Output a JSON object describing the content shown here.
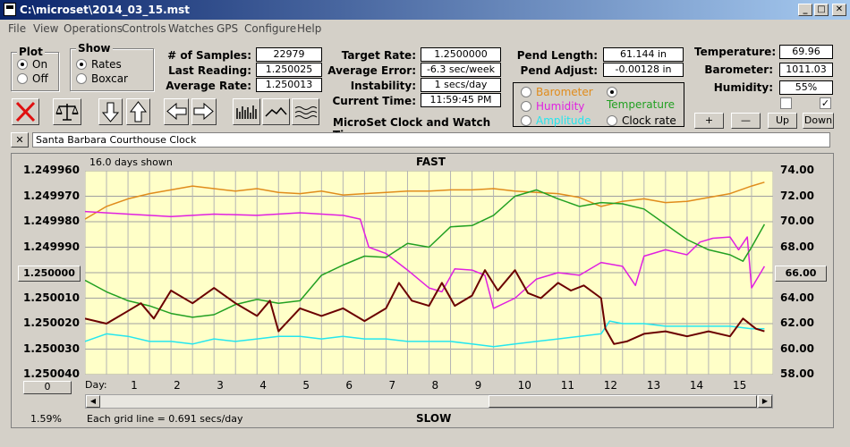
{
  "window": {
    "title": "C:\\microset\\2014_03_15.mst",
    "min": "_",
    "max": "□",
    "close": "✕"
  },
  "menu": [
    "File",
    "View",
    "Operations",
    "Controls",
    "Watches",
    "GPS",
    "Configure",
    "Help"
  ],
  "plot": {
    "title": "Plot",
    "on": "On",
    "off": "Off",
    "selected": "on"
  },
  "show": {
    "title": "Show",
    "rates": "Rates",
    "boxcar": "Boxcar",
    "selected": "rates"
  },
  "stats": {
    "samples_label": "# of Samples:",
    "samples": "22979",
    "last_label": "Last Reading:",
    "last": "1.250025",
    "avg_label": "Average Rate:",
    "avg": "1.250013"
  },
  "rates": {
    "target_label": "Target Rate:",
    "target": "1.2500000",
    "error_label": "Average Error:",
    "error": "-6.3 sec/week",
    "instab_label": "Instability:",
    "instab": "1 secs/day",
    "time_label": "Current Time:",
    "time": "11:59:45 PM",
    "app_name": "MicroSet Clock and Watch Timer"
  },
  "pend": {
    "length_label": "Pend Length:",
    "length": "61.144 in",
    "adjust_label": "Pend Adjust:",
    "adjust": "-0.00128 in"
  },
  "sensors": {
    "barometer": "Barometer",
    "temperature": "Temperature",
    "humidity": "Humidity",
    "amplitude": "Amplitude",
    "clockrate": "Clock rate",
    "selected": "temperature"
  },
  "env": {
    "temp_label": "Temperature:",
    "temp": "69.96",
    "baro_label": "Barometer:",
    "baro": "1011.03",
    "hum_label": "Humidity:",
    "hum": "55%"
  },
  "adjust_buttons": {
    "plus": "+",
    "minus": "—",
    "up": "Up",
    "down": "Down"
  },
  "clock_name": "Santa Barbara Courthouse Clock",
  "chart": {
    "days_shown": "16.0 days shown",
    "fast": "FAST",
    "slow": "SLOW",
    "grid_note": "Each grid line = 0.691 secs/day",
    "percent": "1.59%",
    "left_btn": "1.250000",
    "right_btn": "66.00",
    "zero_btn": "0",
    "day_label": "Day:"
  },
  "chart_data": {
    "type": "line",
    "x_range": [
      0,
      16
    ],
    "y_left_ticks": [
      "1.249960",
      "1.249970",
      "1.249980",
      "1.249990",
      "1.250000",
      "1.250010",
      "1.250020",
      "1.250030",
      "1.250040"
    ],
    "y_right_ticks": [
      "74.00",
      "72.00",
      "70.00",
      "68.00",
      "66.00",
      "64.00",
      "62.00",
      "60.00",
      "58.00"
    ],
    "x_ticks": [
      "1",
      "2",
      "3",
      "4",
      "5",
      "6",
      "7",
      "8",
      "9",
      "10",
      "11",
      "12",
      "13",
      "14",
      "15"
    ],
    "y_left_range": [
      1.24996,
      1.25004
    ],
    "y_right_range": [
      58,
      74
    ],
    "series": [
      {
        "color": "#e08c1c",
        "axis": "right",
        "points": [
          [
            0,
            70.2
          ],
          [
            0.5,
            71.2
          ],
          [
            1,
            71.8
          ],
          [
            1.5,
            72.2
          ],
          [
            2,
            72.5
          ],
          [
            2.5,
            72.8
          ],
          [
            3,
            72.6
          ],
          [
            3.5,
            72.4
          ],
          [
            4,
            72.6
          ],
          [
            4.5,
            72.3
          ],
          [
            5,
            72.2
          ],
          [
            5.5,
            72.4
          ],
          [
            6,
            72.1
          ],
          [
            6.5,
            72.2
          ],
          [
            7,
            72.3
          ],
          [
            7.5,
            72.4
          ],
          [
            8,
            72.4
          ],
          [
            8.5,
            72.5
          ],
          [
            9,
            72.5
          ],
          [
            9.5,
            72.6
          ],
          [
            10,
            72.4
          ],
          [
            10.5,
            72.3
          ],
          [
            11,
            72.2
          ],
          [
            11.5,
            71.9
          ],
          [
            12,
            71.2
          ],
          [
            12.5,
            71.6
          ],
          [
            13,
            71.8
          ],
          [
            13.5,
            71.5
          ],
          [
            14,
            71.6
          ],
          [
            14.5,
            71.9
          ],
          [
            15,
            72.2
          ],
          [
            15.5,
            72.8
          ],
          [
            15.8,
            73.1
          ]
        ]
      },
      {
        "color": "#e020e0",
        "axis": "right",
        "points": [
          [
            0,
            70.8
          ],
          [
            1,
            70.6
          ],
          [
            2,
            70.4
          ],
          [
            3,
            70.6
          ],
          [
            4,
            70.5
          ],
          [
            5,
            70.7
          ],
          [
            6,
            70.5
          ],
          [
            6.4,
            70.2
          ],
          [
            6.6,
            68
          ],
          [
            7,
            67.5
          ],
          [
            7.5,
            66.2
          ],
          [
            8,
            64.8
          ],
          [
            8.3,
            64.5
          ],
          [
            8.6,
            66.3
          ],
          [
            9,
            66.2
          ],
          [
            9.3,
            65.8
          ],
          [
            9.5,
            63.2
          ],
          [
            10,
            64
          ],
          [
            10.5,
            65.5
          ],
          [
            11,
            66
          ],
          [
            11.5,
            65.8
          ],
          [
            12,
            66.8
          ],
          [
            12.5,
            66.5
          ],
          [
            12.8,
            65
          ],
          [
            13,
            67.3
          ],
          [
            13.5,
            67.8
          ],
          [
            14,
            67.4
          ],
          [
            14.3,
            68.4
          ],
          [
            14.6,
            68.7
          ],
          [
            15,
            68.8
          ],
          [
            15.2,
            67.8
          ],
          [
            15.4,
            68.8
          ],
          [
            15.5,
            64.8
          ],
          [
            15.8,
            66.5
          ]
        ]
      },
      {
        "color": "#22a022",
        "axis": "right",
        "points": [
          [
            0,
            65.4
          ],
          [
            0.5,
            64.5
          ],
          [
            1,
            63.8
          ],
          [
            1.5,
            63.4
          ],
          [
            2,
            62.8
          ],
          [
            2.5,
            62.5
          ],
          [
            3,
            62.7
          ],
          [
            3.5,
            63.5
          ],
          [
            4,
            63.9
          ],
          [
            4.5,
            63.6
          ],
          [
            5,
            63.8
          ],
          [
            5.5,
            65.8
          ],
          [
            6,
            66.6
          ],
          [
            6.5,
            67.3
          ],
          [
            7,
            67.2
          ],
          [
            7.5,
            68.3
          ],
          [
            8,
            68
          ],
          [
            8.5,
            69.6
          ],
          [
            9,
            69.7
          ],
          [
            9.5,
            70.5
          ],
          [
            10,
            72
          ],
          [
            10.5,
            72.5
          ],
          [
            11,
            71.8
          ],
          [
            11.5,
            71.2
          ],
          [
            12,
            71.5
          ],
          [
            12.5,
            71.4
          ],
          [
            13,
            71
          ],
          [
            13.5,
            69.8
          ],
          [
            14,
            68.6
          ],
          [
            14.5,
            67.8
          ],
          [
            15,
            67.4
          ],
          [
            15.3,
            66.9
          ],
          [
            15.5,
            68
          ],
          [
            15.8,
            69.8
          ]
        ]
      },
      {
        "color": "#25e6ee",
        "axis": "left",
        "points": [
          [
            0,
            1.250027
          ],
          [
            0.5,
            1.250024
          ],
          [
            1,
            1.250025
          ],
          [
            1.5,
            1.250027
          ],
          [
            2,
            1.250027
          ],
          [
            2.5,
            1.250028
          ],
          [
            3,
            1.250026
          ],
          [
            3.5,
            1.250027
          ],
          [
            4,
            1.250026
          ],
          [
            4.5,
            1.250025
          ],
          [
            5,
            1.250025
          ],
          [
            5.5,
            1.250026
          ],
          [
            6,
            1.250025
          ],
          [
            6.5,
            1.250026
          ],
          [
            7,
            1.250026
          ],
          [
            7.5,
            1.250027
          ],
          [
            8,
            1.250027
          ],
          [
            8.5,
            1.250027
          ],
          [
            9,
            1.250028
          ],
          [
            9.5,
            1.250029
          ],
          [
            10,
            1.250028
          ],
          [
            10.5,
            1.250027
          ],
          [
            11,
            1.250026
          ],
          [
            11.5,
            1.250025
          ],
          [
            12,
            1.250024
          ],
          [
            12.2,
            1.250019
          ],
          [
            12.5,
            1.25002
          ],
          [
            13,
            1.25002
          ],
          [
            13.5,
            1.250021
          ],
          [
            14,
            1.250021
          ],
          [
            14.5,
            1.250021
          ],
          [
            15,
            1.250021
          ],
          [
            15.5,
            1.250022
          ],
          [
            15.8,
            1.250022
          ]
        ]
      },
      {
        "color": "#6b0000",
        "axis": "left",
        "points": [
          [
            0,
            1.250018
          ],
          [
            0.5,
            1.25002
          ],
          [
            1,
            1.250015
          ],
          [
            1.3,
            1.250012
          ],
          [
            1.6,
            1.250018
          ],
          [
            2,
            1.250007
          ],
          [
            2.5,
            1.250012
          ],
          [
            3,
            1.250006
          ],
          [
            3.5,
            1.250012
          ],
          [
            4,
            1.250017
          ],
          [
            4.3,
            1.250011
          ],
          [
            4.5,
            1.250023
          ],
          [
            5,
            1.250014
          ],
          [
            5.5,
            1.250017
          ],
          [
            6,
            1.250014
          ],
          [
            6.5,
            1.250019
          ],
          [
            7,
            1.250014
          ],
          [
            7.3,
            1.250004
          ],
          [
            7.6,
            1.250011
          ],
          [
            8,
            1.250013
          ],
          [
            8.3,
            1.250004
          ],
          [
            8.6,
            1.250013
          ],
          [
            9,
            1.250009
          ],
          [
            9.3,
            1.249999
          ],
          [
            9.6,
            1.250007
          ],
          [
            10,
            1.249999
          ],
          [
            10.3,
            1.250008
          ],
          [
            10.6,
            1.25001
          ],
          [
            11,
            1.250004
          ],
          [
            11.3,
            1.250007
          ],
          [
            11.6,
            1.250005
          ],
          [
            12,
            1.25001
          ],
          [
            12.1,
            1.250022
          ],
          [
            12.3,
            1.250028
          ],
          [
            12.6,
            1.250027
          ],
          [
            13,
            1.250024
          ],
          [
            13.5,
            1.250023
          ],
          [
            14,
            1.250025
          ],
          [
            14.5,
            1.250023
          ],
          [
            15,
            1.250025
          ],
          [
            15.3,
            1.250018
          ],
          [
            15.6,
            1.250022
          ],
          [
            15.8,
            1.250023
          ]
        ]
      }
    ]
  }
}
